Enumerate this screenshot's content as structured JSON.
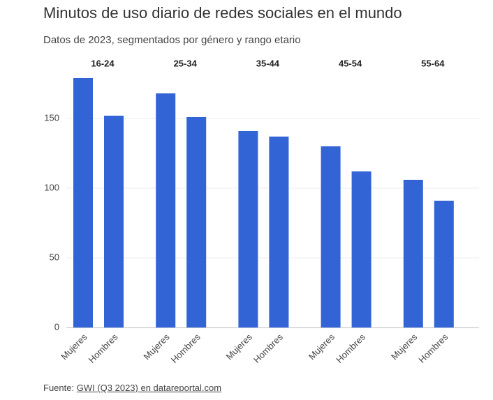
{
  "chart_data": {
    "type": "bar",
    "title": "Minutos de uso diario de redes sociales en el mundo",
    "subtitle": "Datos de 2023, segmentados por género y rango etario",
    "color": "#3264d6",
    "ylim": [
      0,
      185
    ],
    "yticks": [
      0,
      50,
      100,
      150
    ],
    "grid": true,
    "facets": [
      {
        "title": "16-24",
        "categories": [
          "Mujeres",
          "Hombres"
        ],
        "values": [
          179,
          152
        ]
      },
      {
        "title": "25-34",
        "categories": [
          "Mujeres",
          "Hombres"
        ],
        "values": [
          168,
          151
        ]
      },
      {
        "title": "35-44",
        "categories": [
          "Mujeres",
          "Hombres"
        ],
        "values": [
          141,
          137
        ]
      },
      {
        "title": "45-54",
        "categories": [
          "Mujeres",
          "Hombres"
        ],
        "values": [
          130,
          112
        ]
      },
      {
        "title": "55-64",
        "categories": [
          "Mujeres",
          "Hombres"
        ],
        "values": [
          106,
          91
        ]
      }
    ],
    "source_prefix": "Fuente:",
    "source_link": "GWI (Q3 2023) en datareportal.com"
  }
}
